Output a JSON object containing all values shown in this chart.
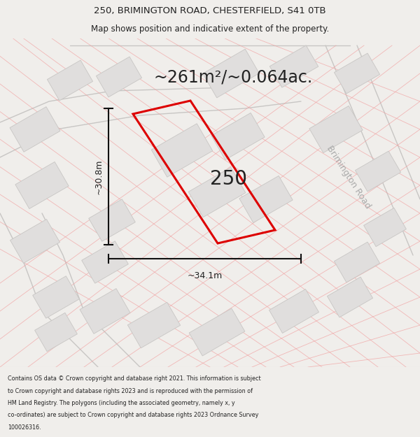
{
  "title_line1": "250, BRIMINGTON ROAD, CHESTERFIELD, S41 0TB",
  "title_line2": "Map shows position and indicative extent of the property.",
  "area_text": "~261m²/~0.064ac.",
  "property_number": "250",
  "dim_height": "~30.8m",
  "dim_width": "~34.1m",
  "road_label": "Brimington Road",
  "footer_lines": [
    "Contains OS data © Crown copyright and database right 2021. This information is subject",
    "to Crown copyright and database rights 2023 and is reproduced with the permission of",
    "HM Land Registry. The polygons (including the associated geometry, namely x, y",
    "co-ordinates) are subject to Crown copyright and database rights 2023 Ordnance Survey",
    "100026316."
  ],
  "map_bg": "#f8f7f5",
  "title_bg": "#f0eeeb",
  "footer_bg": "#ffffff",
  "plot_edge_color": "#dd0000",
  "plot_fill_color": "#f8f7f5",
  "building_face": "#e0dedd",
  "building_edge": "#c8c6c4",
  "road_outline_color": "#c8c6c4",
  "pink_line_color": "#f0a0a0",
  "gray_road_color": "#d8d6d4",
  "brimington_road_color": "#c8c6c4",
  "dim_line_color": "#111111",
  "text_color": "#222222",
  "area_fontsize": 17,
  "title1_fontsize": 9.5,
  "title2_fontsize": 8.5,
  "number_fontsize": 20,
  "dim_fontsize": 9,
  "road_label_fontsize": 9
}
